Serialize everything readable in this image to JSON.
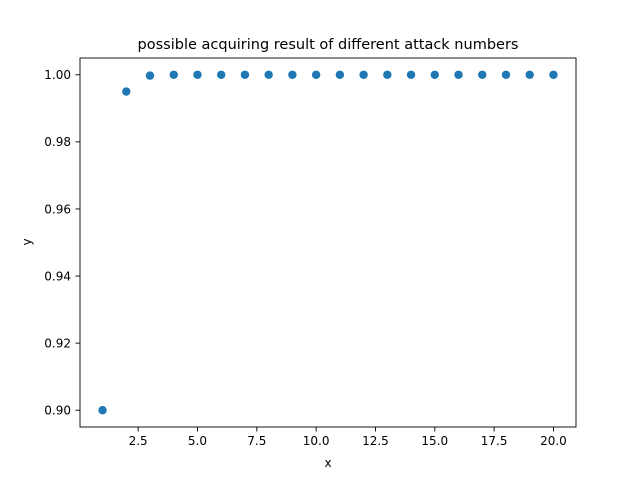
{
  "chart_data": {
    "type": "scatter",
    "title": "possible acquiring result of different attack numbers",
    "xlabel": "x",
    "ylabel": "y",
    "x": [
      1,
      2,
      3,
      4,
      5,
      6,
      7,
      8,
      9,
      10,
      11,
      12,
      13,
      14,
      15,
      16,
      17,
      18,
      19,
      20
    ],
    "y": [
      0.9,
      0.995,
      0.99975,
      1.0,
      1.0,
      1.0,
      1.0,
      1.0,
      1.0,
      1.0,
      1.0,
      1.0,
      1.0,
      1.0,
      1.0,
      1.0,
      1.0,
      1.0,
      1.0,
      1.0
    ],
    "xlim": [
      0.05,
      20.95
    ],
    "ylim": [
      0.895,
      1.005
    ],
    "xticks": [
      2.5,
      5.0,
      7.5,
      10.0,
      12.5,
      15.0,
      17.5,
      20.0
    ],
    "xtick_labels": [
      "2.5",
      "5.0",
      "7.5",
      "10.0",
      "12.5",
      "15.0",
      "17.5",
      "20.0"
    ],
    "yticks": [
      0.9,
      0.92,
      0.94,
      0.96,
      0.98,
      1.0
    ],
    "ytick_labels": [
      "0.90",
      "0.92",
      "0.94",
      "0.96",
      "0.98",
      "1.00"
    ],
    "grid": false,
    "marker_color": "#1f77b4"
  }
}
